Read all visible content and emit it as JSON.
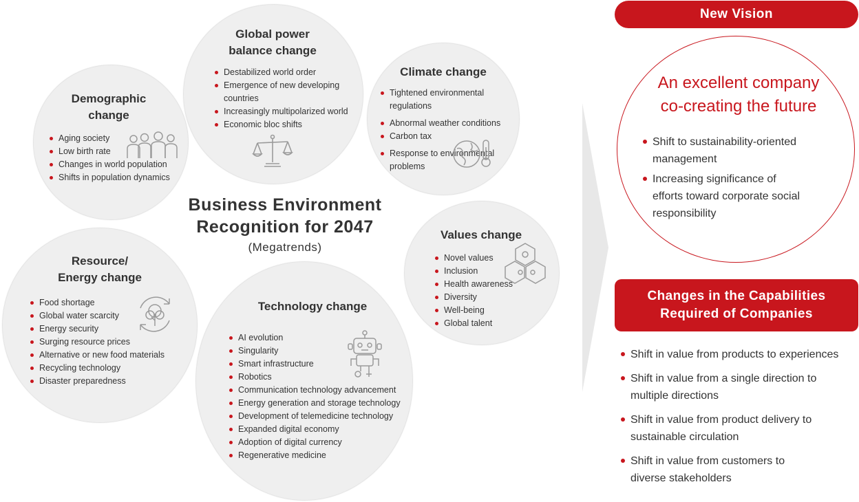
{
  "center": {
    "title": "Business Environment\nRecognition for 2047",
    "subtitle": "(Megatrends)"
  },
  "circles": {
    "demographic": {
      "title": "Demographic\nchange",
      "icon": "people-group-icon",
      "items": [
        "Aging society",
        "Low birth rate",
        "Changes in world population",
        "Shifts in population dynamics"
      ]
    },
    "global_power": {
      "title": "Global power\nbalance change",
      "icon": "balance-scale-icon",
      "items": [
        "Destabilized world order",
        "Emergence of new developing countries",
        "Increasingly multipolarized world",
        "Economic bloc shifts"
      ]
    },
    "climate": {
      "title": "Climate change",
      "icon": "globe-thermometer-icon",
      "items": [
        "Tightened environmental regulations",
        "Abnormal weather conditions",
        "Carbon tax",
        "Response to environmental problems"
      ]
    },
    "values": {
      "title": "Values change",
      "icon": "puzzle-hexagon-icon",
      "items": [
        "Novel values",
        "Inclusion",
        "Health awareness",
        "Diversity",
        "Well-being",
        "Global talent"
      ]
    },
    "resource": {
      "title": "Resource/\nEnergy change",
      "icon": "recycle-tree-icon",
      "items": [
        "Food shortage",
        "Global water scarcity",
        "Energy security",
        "Surging resource prices",
        "Alternative or new food materials",
        "Recycling technology",
        "Disaster preparedness"
      ]
    },
    "technology": {
      "title": "Technology change",
      "icon": "robot-icon",
      "items": [
        "AI evolution",
        "Singularity",
        "Smart infrastructure",
        "Robotics",
        "Communication technology advancement",
        "Energy generation and storage technology",
        "Development of telemedicine technology",
        "Expanded digital economy",
        "Adoption of digital currency",
        "Regenerative medicine"
      ]
    }
  },
  "vision": {
    "label": "New Vision",
    "heading": "An excellent company\nco-creating the future",
    "items": [
      "Shift to sustainability-oriented\nmanagement",
      "Increasing significance of\nefforts toward corporate social\nresponsibility"
    ]
  },
  "capabilities": {
    "label": "Changes in the Capabilities\nRequired of Companies",
    "items": [
      "Shift in value from products to experiences",
      "Shift in value from a single direction to\nmultiple directions",
      "Shift in value from product delivery to\nsustainable circulation",
      "Shift in value from customers to\ndiverse stakeholders"
    ]
  },
  "colors": {
    "accent": "#c8161d",
    "circle_fill": "#efefef",
    "text": "#333333",
    "icon_stroke": "#9a9a9a"
  }
}
